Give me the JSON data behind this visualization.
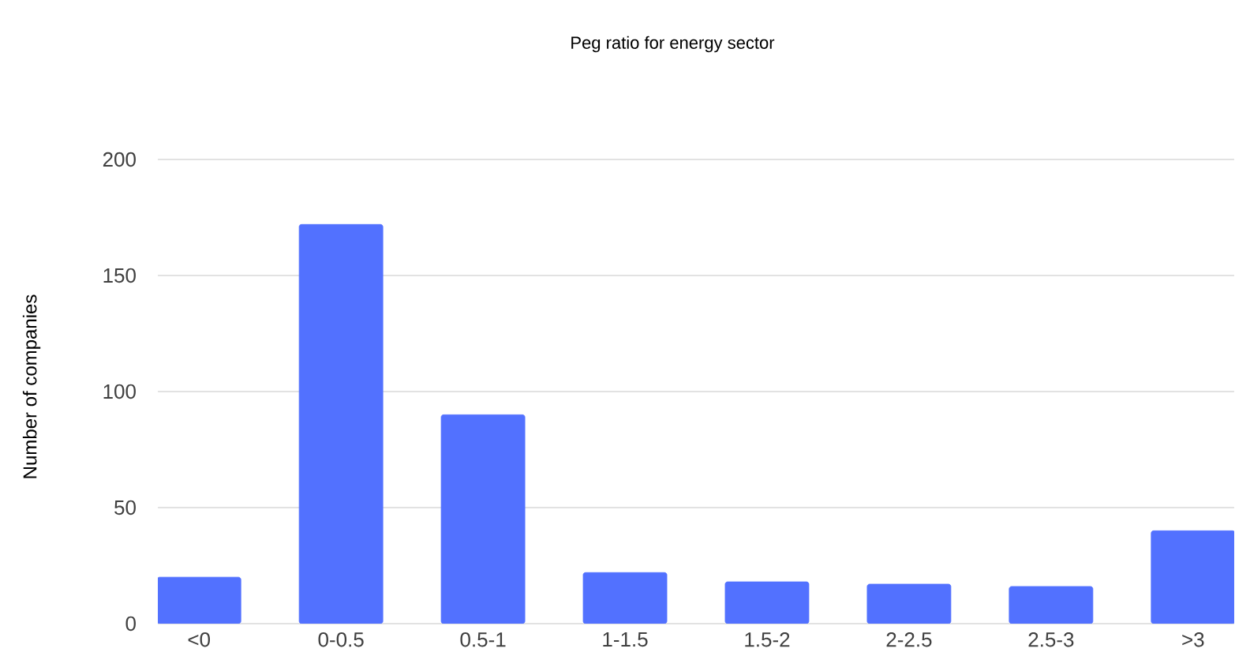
{
  "chart_data": {
    "type": "bar",
    "title": "Peg ratio for energy sector",
    "ylabel": "Number of companies",
    "categories": [
      "<0",
      "0-0.5",
      "0.5-1",
      "1-1.5",
      "1.5-2",
      "2-2.5",
      "2.5-3",
      ">3"
    ],
    "values": [
      20,
      172,
      90,
      22,
      18,
      17,
      16,
      40
    ],
    "color": "#5271ff",
    "ylim": [
      0,
      200
    ],
    "yticks": [
      0,
      50,
      100,
      150,
      200
    ],
    "grid": "y"
  }
}
